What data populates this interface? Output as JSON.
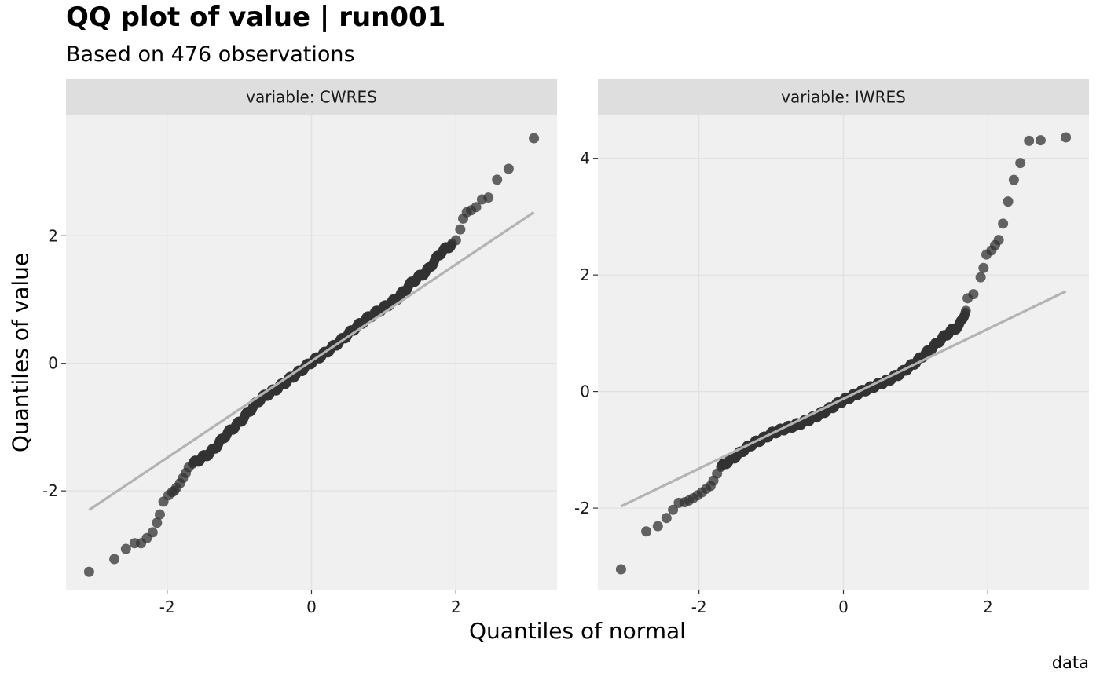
{
  "title": "QQ plot of value | run001",
  "subtitle": "Based on 476 observations",
  "xlabel": "Quantiles of normal",
  "ylabel": "Quantiles of value",
  "caption": "data",
  "colors": {
    "panel_bg": "#f0f0f0",
    "strip_bg": "#dedede",
    "grid": "#e2e2e2",
    "point": "#333333",
    "line": "#b3b3b3"
  },
  "chart_data": [
    {
      "type": "scatter",
      "strip_label": "variable: CWRES",
      "xlim": [
        -3.4,
        3.4
      ],
      "ylim": [
        -3.55,
        3.9
      ],
      "x_ticks": [
        -2,
        0,
        2
      ],
      "y_ticks": [
        -2,
        0,
        2
      ],
      "grid": true,
      "reference_line": [
        [
          -3.08,
          -2.3
        ],
        [
          3.08,
          2.37
        ]
      ],
      "n": 476,
      "tail_points": [
        [
          -3.08,
          -3.27
        ],
        [
          -2.73,
          -3.07
        ],
        [
          -2.57,
          -2.91
        ],
        [
          -2.45,
          -2.82
        ],
        [
          -2.36,
          -2.82
        ],
        [
          -2.28,
          -2.74
        ],
        [
          -2.2,
          -2.65
        ],
        [
          -2.14,
          -2.5
        ],
        [
          -2.1,
          -2.37
        ],
        [
          -2.05,
          -2.17
        ],
        [
          -1.98,
          -2.07
        ],
        [
          -1.93,
          -2.02
        ],
        [
          -1.87,
          -1.95
        ],
        [
          -1.82,
          -1.88
        ],
        [
          -1.78,
          -1.8
        ],
        [
          -1.74,
          -1.72
        ],
        [
          -1.7,
          -1.63
        ],
        [
          -1.9,
          -2.0
        ],
        [
          2.0,
          1.93
        ],
        [
          2.06,
          2.1
        ],
        [
          2.1,
          2.27
        ],
        [
          2.15,
          2.37
        ],
        [
          2.21,
          2.4
        ],
        [
          2.28,
          2.45
        ],
        [
          2.36,
          2.57
        ],
        [
          2.45,
          2.6
        ],
        [
          2.57,
          2.88
        ],
        [
          2.73,
          3.05
        ],
        [
          3.08,
          3.53
        ]
      ],
      "core_curve": [
        [
          -1.65,
          -1.58
        ],
        [
          -1.5,
          -1.47
        ],
        [
          -1.4,
          -1.4
        ],
        [
          -1.3,
          -1.28
        ],
        [
          -1.2,
          -1.14
        ],
        [
          -1.1,
          -1.03
        ],
        [
          -1.0,
          -0.93
        ],
        [
          -0.9,
          -0.8
        ],
        [
          -0.8,
          -0.67
        ],
        [
          -0.7,
          -0.55
        ],
        [
          -0.6,
          -0.48
        ],
        [
          -0.5,
          -0.41
        ],
        [
          -0.4,
          -0.33
        ],
        [
          -0.3,
          -0.24
        ],
        [
          -0.2,
          -0.16
        ],
        [
          -0.1,
          -0.07
        ],
        [
          0.0,
          0.02
        ],
        [
          0.2,
          0.17
        ],
        [
          0.4,
          0.35
        ],
        [
          0.6,
          0.55
        ],
        [
          0.8,
          0.73
        ],
        [
          1.0,
          0.87
        ],
        [
          1.2,
          1.03
        ],
        [
          1.4,
          1.28
        ],
        [
          1.6,
          1.45
        ],
        [
          1.8,
          1.75
        ],
        [
          1.95,
          1.87
        ]
      ]
    },
    {
      "type": "scatter",
      "strip_label": "variable: IWRES",
      "xlim": [
        -3.4,
        3.4
      ],
      "ylim": [
        -3.4,
        4.75
      ],
      "x_ticks": [
        -2,
        0,
        2
      ],
      "y_ticks": [
        -2,
        0,
        2,
        4
      ],
      "grid": true,
      "reference_line": [
        [
          -3.08,
          -1.97
        ],
        [
          3.08,
          1.72
        ]
      ],
      "n": 476,
      "tail_points": [
        [
          -3.08,
          -3.05
        ],
        [
          -2.73,
          -2.4
        ],
        [
          -2.57,
          -2.31
        ],
        [
          -2.45,
          -2.17
        ],
        [
          -2.36,
          -2.03
        ],
        [
          -2.28,
          -1.91
        ],
        [
          -2.2,
          -1.9
        ],
        [
          -2.14,
          -1.87
        ],
        [
          -2.08,
          -1.83
        ],
        [
          -2.02,
          -1.78
        ],
        [
          -1.96,
          -1.73
        ],
        [
          -1.9,
          -1.67
        ],
        [
          -1.84,
          -1.62
        ],
        [
          -1.8,
          -1.53
        ],
        [
          -1.75,
          -1.41
        ],
        [
          1.72,
          1.6
        ],
        [
          1.8,
          1.67
        ],
        [
          1.9,
          1.96
        ],
        [
          1.94,
          2.12
        ],
        [
          1.98,
          2.35
        ],
        [
          2.05,
          2.42
        ],
        [
          2.1,
          2.51
        ],
        [
          2.15,
          2.6
        ],
        [
          2.21,
          2.88
        ],
        [
          2.28,
          3.26
        ],
        [
          2.36,
          3.63
        ],
        [
          2.45,
          3.92
        ],
        [
          2.57,
          4.3
        ],
        [
          2.73,
          4.31
        ],
        [
          3.08,
          4.36
        ]
      ],
      "core_curve": [
        [
          -1.7,
          -1.3
        ],
        [
          -1.6,
          -1.2
        ],
        [
          -1.5,
          -1.12
        ],
        [
          -1.4,
          -1.02
        ],
        [
          -1.3,
          -0.93
        ],
        [
          -1.2,
          -0.86
        ],
        [
          -1.1,
          -0.8
        ],
        [
          -1.0,
          -0.72
        ],
        [
          -0.8,
          -0.63
        ],
        [
          -0.6,
          -0.55
        ],
        [
          -0.4,
          -0.44
        ],
        [
          -0.2,
          -0.3
        ],
        [
          0.0,
          -0.15
        ],
        [
          0.2,
          -0.03
        ],
        [
          0.4,
          0.08
        ],
        [
          0.6,
          0.18
        ],
        [
          0.8,
          0.32
        ],
        [
          1.0,
          0.5
        ],
        [
          1.2,
          0.72
        ],
        [
          1.4,
          0.95
        ],
        [
          1.5,
          1.05
        ],
        [
          1.6,
          1.12
        ],
        [
          1.7,
          1.4
        ]
      ]
    }
  ]
}
